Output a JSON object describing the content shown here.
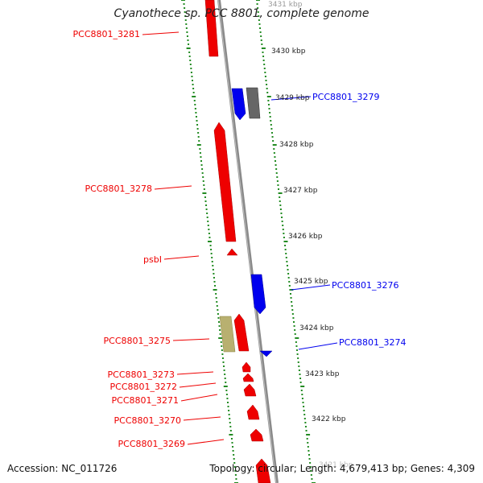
{
  "title": "Cyanothece sp. PCC 8801, complete genome",
  "accession": "Accession: NC_011726",
  "topology": "Topology: circular; Length: 4,679,413 bp; Genes: 4,309",
  "colors": {
    "forward": "#ee0000",
    "reverse": "#0000ee",
    "other_gray": "#666666",
    "other_khaki": "#b8b070",
    "tick": "#228b22",
    "backbone": "#8a8a8a"
  },
  "scale_labels": [
    "3431 kbp",
    "3430 kbp",
    "3429 kbp",
    "3428 kbp",
    "3427 kbp",
    "3426 kbp",
    "3425 kbp",
    "3424 kbp",
    "3423 kbp",
    "3422 kbp",
    "3421 kbp"
  ],
  "gene_labels_left": [
    "PCC8801_3281",
    "PCC8801_3278",
    "psbI",
    "PCC8801_3275",
    "PCC8801_3273",
    "PCC8801_3272",
    "PCC8801_3271",
    "PCC8801_3270",
    "PCC8801_3269"
  ],
  "gene_labels_right": [
    "PCC8801_3279",
    "PCC8801_3276",
    "PCC8801_3274"
  ]
}
